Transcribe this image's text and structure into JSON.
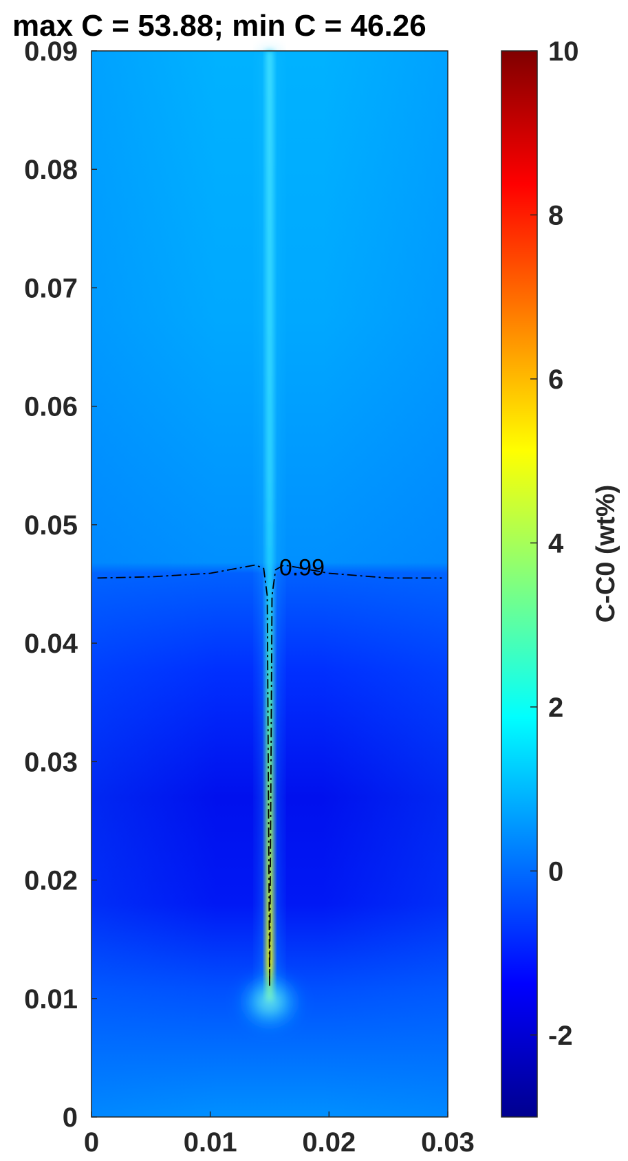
{
  "chart_data": {
    "type": "heatmap",
    "title": "max C = 53.88; min C = 46.26",
    "xlim": [
      0,
      0.03
    ],
    "ylim": [
      0,
      0.09
    ],
    "x_ticks": [
      "0",
      "0.01",
      "0.02",
      "0.03"
    ],
    "y_ticks": [
      "0",
      "0.01",
      "0.02",
      "0.03",
      "0.04",
      "0.05",
      "0.06",
      "0.07",
      "0.08",
      "0.09"
    ],
    "colorbar": {
      "label": "C-C0 (wt%)",
      "range": [
        -3,
        10
      ],
      "ticks": [
        "-2",
        "0",
        "2",
        "4",
        "6",
        "8",
        "10"
      ],
      "colormap": "jet"
    },
    "contour": {
      "label": "0.99",
      "style": "dash-dot",
      "points": [
        [
          0.0005,
          0.0455
        ],
        [
          0.005,
          0.0456
        ],
        [
          0.01,
          0.0459
        ],
        [
          0.0138,
          0.0466
        ],
        [
          0.0145,
          0.0463
        ],
        [
          0.0148,
          0.044
        ],
        [
          0.015,
          0.011
        ],
        [
          0.0152,
          0.044
        ],
        [
          0.0155,
          0.0462
        ],
        [
          0.0162,
          0.0466
        ],
        [
          0.02,
          0.0459
        ],
        [
          0.025,
          0.0455
        ],
        [
          0.0295,
          0.0455
        ]
      ]
    },
    "field_description_values": {
      "upper_region_value": 0.5,
      "lower_region_value": -2.0,
      "channel_x": 0.015,
      "channel_peak_value": 5.0,
      "channel_peak_y": 0.011
    },
    "grid": false
  }
}
